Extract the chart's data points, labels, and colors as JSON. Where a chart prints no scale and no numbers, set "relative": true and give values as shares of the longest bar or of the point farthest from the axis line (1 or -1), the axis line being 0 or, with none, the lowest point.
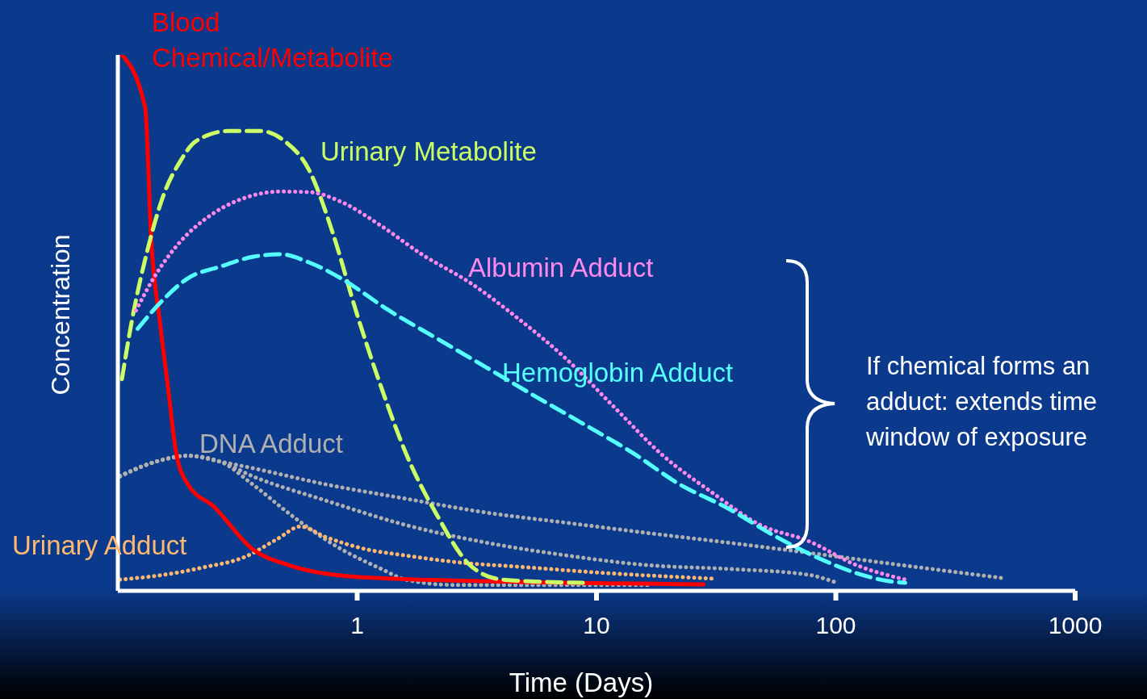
{
  "chart_data": {
    "type": "line",
    "relative": true,
    "xlabel": "Time (Days)",
    "ylabel": "Concentration",
    "log": "x",
    "xlim": [
      0.1,
      1000
    ],
    "xticks": [
      1,
      10,
      100,
      1000
    ],
    "annotations": [
      "If chemical forms an adduct: extends time window of exposure"
    ],
    "series": [
      {
        "name": "DNA Adduct",
        "color": "#b0b0b0",
        "line_style": "dotted",
        "x": [
          0.102,
          0.144,
          0.196,
          0.268,
          0.365,
          0.733,
          1.59,
          3.46,
          7.5,
          16.3,
          35.4,
          76.8,
          167,
          494
        ],
        "values": [
          0.214,
          0.241,
          0.252,
          0.241,
          0.229,
          0.199,
          0.172,
          0.146,
          0.127,
          0.108,
          0.09,
          0.071,
          0.051,
          0.024
        ]
      },
      {
        "color": "#b0b0b0",
        "line_style": "dotted",
        "x": [
          0.102,
          0.144,
          0.196,
          0.268,
          0.365,
          0.733,
          1.59,
          3.46,
          7.5,
          16.3,
          35.4,
          76.8,
          101
        ],
        "values": [
          0.214,
          0.241,
          0.252,
          0.241,
          0.214,
          0.169,
          0.123,
          0.09,
          0.066,
          0.048,
          0.041,
          0.03,
          0.015
        ]
      },
      {
        "color": "#b0b0b0",
        "line_style": "dotted",
        "x": [
          0.102,
          0.144,
          0.196,
          0.268,
          0.365,
          0.538,
          0.856,
          1.26,
          1.59,
          2.54,
          7.5,
          16.3
        ],
        "values": [
          0.214,
          0.241,
          0.252,
          0.241,
          0.199,
          0.139,
          0.078,
          0.041,
          0.021,
          0.011,
          0.011,
          0.011
        ]
      },
      {
        "name": "Urinary Adduct",
        "color": "#ffb870",
        "line_style": "dotted",
        "x": [
          0.102,
          0.156,
          0.229,
          0.338,
          0.461,
          0.581,
          0.733,
          1.08,
          1.59,
          2.54,
          5.1,
          11.1,
          30.3
        ],
        "values": [
          0.021,
          0.03,
          0.044,
          0.063,
          0.096,
          0.12,
          0.101,
          0.078,
          0.066,
          0.054,
          0.044,
          0.033,
          0.023
        ]
      },
      {
        "name": "Blood Chemical/Metabolite",
        "color": "#ff0000",
        "line_style": "solid",
        "x": [
          0.104,
          0.13,
          0.138,
          0.15,
          0.162,
          0.175,
          0.196,
          0.252,
          0.365,
          0.517,
          1,
          3.46,
          28
        ],
        "values": [
          1,
          0.902,
          0.651,
          0.5,
          0.38,
          0.259,
          0.199,
          0.157,
          0.078,
          0.048,
          0.026,
          0.018,
          0.012
        ]
      },
      {
        "name": "Urinary Metabolite",
        "color": "#ccff66",
        "line_style": "dashed",
        "x": [
          0.104,
          0.114,
          0.133,
          0.156,
          0.182,
          0.212,
          0.289,
          0.394,
          0.498,
          0.628,
          0.793,
          1,
          1.26,
          1.59,
          2.17,
          2.96,
          4.04,
          8.77
        ],
        "values": [
          0.395,
          0.5,
          0.636,
          0.741,
          0.801,
          0.839,
          0.858,
          0.858,
          0.839,
          0.786,
          0.666,
          0.515,
          0.38,
          0.259,
          0.139,
          0.048,
          0.021,
          0.015
        ]
      },
      {
        "name": "Albumin Adduct",
        "color": "#ff88ee",
        "line_style": "dotted",
        "x": [
          0.119,
          0.144,
          0.182,
          0.248,
          0.338,
          0.479,
          0.628,
          0.856,
          1.26,
          1.86,
          2.96,
          4.71,
          7.5,
          11.9,
          19,
          30.3,
          48.3,
          76.8,
          122,
          195
        ],
        "values": [
          0.523,
          0.59,
          0.651,
          0.703,
          0.733,
          0.745,
          0.744,
          0.726,
          0.681,
          0.628,
          0.575,
          0.508,
          0.432,
          0.342,
          0.252,
          0.184,
          0.123,
          0.093,
          0.048,
          0.021
        ]
      },
      {
        "name": "Hemoglobin Adduct",
        "color": "#55ffff",
        "line_style": "dashed",
        "x": [
          0.121,
          0.156,
          0.196,
          0.268,
          0.365,
          0.479,
          0.628,
          0.856,
          1.36,
          2.17,
          3.46,
          5.5,
          8.77,
          14,
          22.2,
          35.4,
          56.3,
          83,
          122,
          167,
          195
        ],
        "values": [
          0.489,
          0.545,
          0.583,
          0.605,
          0.623,
          0.628,
          0.613,
          0.583,
          0.523,
          0.47,
          0.417,
          0.364,
          0.312,
          0.259,
          0.199,
          0.154,
          0.101,
          0.063,
          0.033,
          0.018,
          0.015
        ]
      }
    ]
  }
}
